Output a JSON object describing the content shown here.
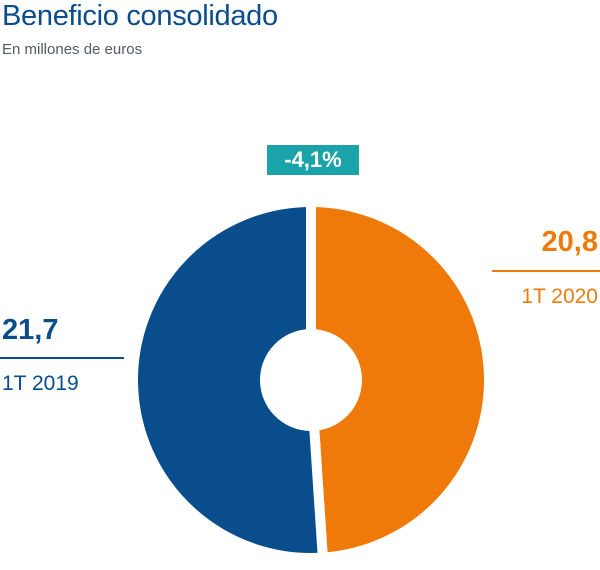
{
  "chart_data": {
    "type": "pie",
    "title": "Beneficio consolidado",
    "subtitle": "En millones de euros",
    "donut": true,
    "change_badge": "-4,1%",
    "slices": [
      {
        "name": "1T 2019",
        "value": 21.7,
        "value_label": "21,7",
        "color": "#0a4d8c"
      },
      {
        "name": "1T 2020",
        "value": 20.8,
        "value_label": "20,8",
        "color": "#ef7a0a"
      }
    ]
  },
  "colors": {
    "badge": "#1aa3a8",
    "background": "#ffffff"
  }
}
